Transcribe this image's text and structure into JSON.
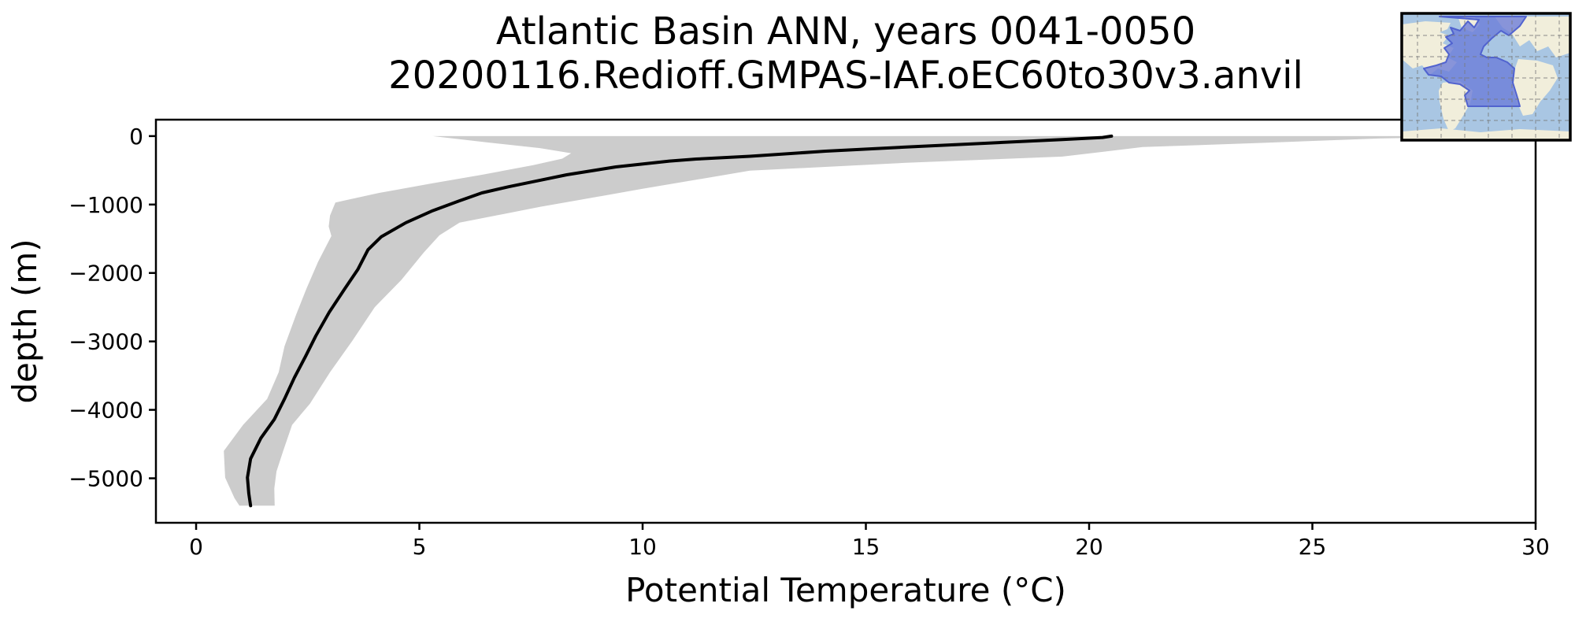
{
  "figure": {
    "kind": "depth-profile-plot"
  },
  "chart_data": {
    "type": "line",
    "title": "Atlantic Basin ANN, years 0041-0050",
    "subtitle": "20200116.Redioff.GMPAS-IAF.oEC60to30v3.anvil",
    "xlabel": "Potential Temperature (°C)",
    "ylabel": "depth (m)",
    "xlim": [
      -0.9,
      30
    ],
    "ylim": [
      -5650,
      240
    ],
    "xticks": [
      0,
      5,
      10,
      15,
      20,
      25,
      30
    ],
    "yticks": [
      0,
      -1000,
      -2000,
      -3000,
      -4000,
      -5000
    ],
    "grid": false,
    "legend": "none",
    "colors": {
      "mean_line": "#000000",
      "range_band": "#cccccc",
      "spine": "#000000"
    },
    "series": [
      {
        "name": "mean potential temperature profile",
        "color": "#000000",
        "points_temp_depth": [
          [
            20.5,
            0
          ],
          [
            20.3,
            -20
          ],
          [
            19.4,
            -50
          ],
          [
            17.8,
            -100
          ],
          [
            15.9,
            -160
          ],
          [
            14.1,
            -220
          ],
          [
            12.4,
            -295
          ],
          [
            11.2,
            -335
          ],
          [
            10.6,
            -365
          ],
          [
            9.4,
            -450
          ],
          [
            8.3,
            -565
          ],
          [
            7.6,
            -660
          ],
          [
            7.0,
            -740
          ],
          [
            6.4,
            -830
          ],
          [
            5.9,
            -945
          ],
          [
            5.3,
            -1090
          ],
          [
            4.7,
            -1265
          ],
          [
            4.15,
            -1470
          ],
          [
            3.85,
            -1660
          ],
          [
            3.62,
            -1950
          ],
          [
            3.33,
            -2230
          ],
          [
            2.98,
            -2575
          ],
          [
            2.68,
            -2920
          ],
          [
            2.45,
            -3220
          ],
          [
            2.2,
            -3530
          ],
          [
            1.98,
            -3840
          ],
          [
            1.75,
            -4140
          ],
          [
            1.45,
            -4415
          ],
          [
            1.22,
            -4715
          ],
          [
            1.15,
            -4990
          ],
          [
            1.18,
            -5220
          ],
          [
            1.22,
            -5400
          ]
        ]
      }
    ],
    "band": {
      "name": "basin min-max temperature range",
      "color": "#cccccc",
      "min_boundary_temp_depth": [
        [
          5.3,
          0
        ],
        [
          6.5,
          -90
        ],
        [
          7.7,
          -175
        ],
        [
          8.4,
          -250
        ],
        [
          8.2,
          -330
        ],
        [
          7.55,
          -425
        ],
        [
          6.4,
          -565
        ],
        [
          5.3,
          -690
        ],
        [
          4.1,
          -830
        ],
        [
          3.12,
          -970
        ],
        [
          3.0,
          -1160
        ],
        [
          2.97,
          -1320
        ],
        [
          3.03,
          -1460
        ],
        [
          2.73,
          -1840
        ],
        [
          2.47,
          -2230
        ],
        [
          2.24,
          -2610
        ],
        [
          1.98,
          -3070
        ],
        [
          1.85,
          -3450
        ],
        [
          1.59,
          -3840
        ],
        [
          1.05,
          -4220
        ],
        [
          0.62,
          -4600
        ],
        [
          0.65,
          -4990
        ],
        [
          0.86,
          -5290
        ],
        [
          0.97,
          -5400
        ]
      ],
      "max_boundary_temp_depth": [
        [
          1.76,
          -5400
        ],
        [
          1.75,
          -5150
        ],
        [
          1.8,
          -4900
        ],
        [
          1.95,
          -4600
        ],
        [
          2.15,
          -4220
        ],
        [
          2.55,
          -3910
        ],
        [
          3.0,
          -3450
        ],
        [
          3.5,
          -2990
        ],
        [
          4.0,
          -2500
        ],
        [
          4.6,
          -2100
        ],
        [
          5.1,
          -1700
        ],
        [
          5.45,
          -1450
        ],
        [
          5.9,
          -1265
        ],
        [
          7.7,
          -1035
        ],
        [
          10.0,
          -770
        ],
        [
          12.4,
          -505
        ],
        [
          15.9,
          -390
        ],
        [
          19.4,
          -300
        ],
        [
          21.2,
          -160
        ],
        [
          23.8,
          -100
        ],
        [
          26.5,
          -35
        ],
        [
          29.6,
          0
        ]
      ]
    },
    "inset_map": {
      "name": "atlantic-basin-region-map",
      "ocean_color": "#a9c6e3",
      "land_color": "#f1eedb",
      "region_color": "#6a7bd9"
    }
  }
}
